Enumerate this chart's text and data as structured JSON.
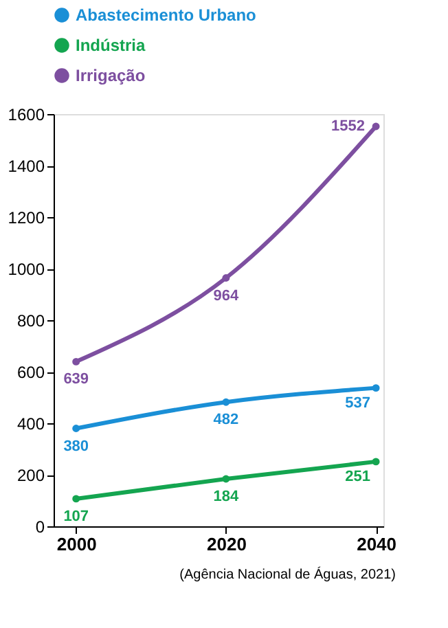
{
  "chart_data": {
    "type": "line",
    "x": [
      2000,
      2020,
      2040
    ],
    "series": [
      {
        "name": "Abastecimento Urbano",
        "color": "#1a8fd6",
        "values": [
          380,
          482,
          537
        ]
      },
      {
        "name": "Indústria",
        "color": "#14a550",
        "values": [
          107,
          184,
          251
        ]
      },
      {
        "name": "Irrigação",
        "color": "#7d4fa0",
        "values": [
          639,
          964,
          1552
        ]
      }
    ],
    "xlim": [
      1997,
      2041
    ],
    "xticks": [
      2000,
      2020,
      2040
    ],
    "ylim": [
      0,
      1600
    ],
    "yticks": [
      0,
      200,
      400,
      600,
      800,
      1000,
      1200,
      1400,
      1600
    ],
    "legend": "top",
    "marker": "circle",
    "line_style": "solid",
    "grid": false,
    "data_labels": true,
    "annotations": [
      "(Agência Nacional de Águas, 2021)"
    ]
  }
}
